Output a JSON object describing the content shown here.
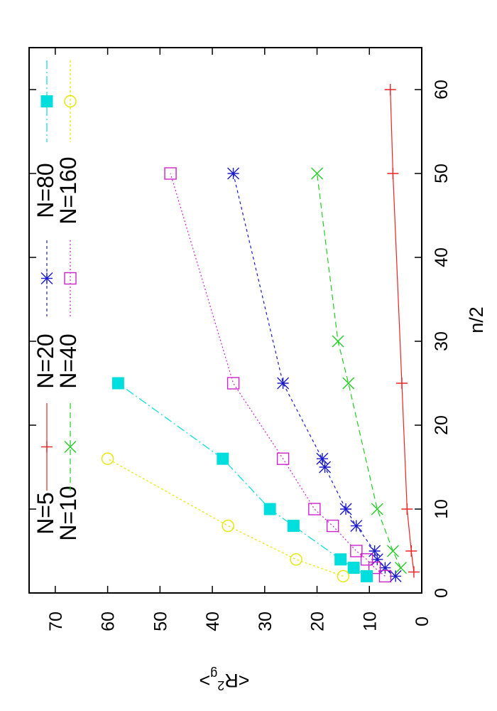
{
  "chart_data": {
    "type": "line",
    "xlabel": "n/2",
    "ylabel_main": "<R",
    "ylabel_sup": "2",
    "ylabel_sub": "g",
    "ylabel_end": ">",
    "xlim": [
      0,
      65
    ],
    "ylim": [
      0,
      75
    ],
    "xticks": [
      0,
      10,
      20,
      30,
      40,
      50,
      60
    ],
    "yticks": [
      0,
      10,
      20,
      30,
      40,
      50,
      60,
      70
    ],
    "grid": false,
    "legend_position": "top-right",
    "series": [
      {
        "name": "N=5",
        "color": "#ee2222",
        "marker": "plus",
        "dash": "none",
        "x": [
          2.5,
          5,
          10,
          25,
          50,
          60
        ],
        "y": [
          1.5,
          2,
          2.8,
          3.8,
          5.5,
          6
        ]
      },
      {
        "name": "N=10",
        "color": "#22cc22",
        "marker": "x",
        "dash": "8,5",
        "x": [
          3,
          5,
          10,
          25,
          30,
          50
        ],
        "y": [
          4,
          5.5,
          8.5,
          14,
          16,
          20
        ]
      },
      {
        "name": "N=20",
        "color": "#1a1acc",
        "marker": "star",
        "dash": "4,4",
        "x": [
          2,
          3,
          4,
          5,
          8,
          10,
          15,
          16,
          25,
          50
        ],
        "y": [
          5,
          7,
          8.5,
          9,
          12.5,
          14.5,
          18.5,
          19,
          26.5,
          36
        ]
      },
      {
        "name": "N=40",
        "color": "#cc22cc",
        "marker": "square-open",
        "dash": "2,3",
        "x": [
          2,
          3,
          4,
          5,
          8,
          10,
          16,
          25,
          50
        ],
        "y": [
          7,
          9,
          10.5,
          12.5,
          17,
          20.5,
          26.5,
          36,
          48
        ]
      },
      {
        "name": "N=80",
        "color": "#00dddd",
        "marker": "square-filled",
        "dash": "12,4,2,4",
        "x": [
          2,
          3,
          4,
          8,
          10,
          16,
          25
        ],
        "y": [
          10.5,
          13,
          15.5,
          24.5,
          29,
          38,
          58
        ]
      },
      {
        "name": "N=160",
        "color": "#e6e600",
        "marker": "circle-open",
        "dash": "3,3",
        "x": [
          2,
          4,
          8,
          16
        ],
        "y": [
          15,
          24,
          37,
          60
        ]
      }
    ]
  }
}
